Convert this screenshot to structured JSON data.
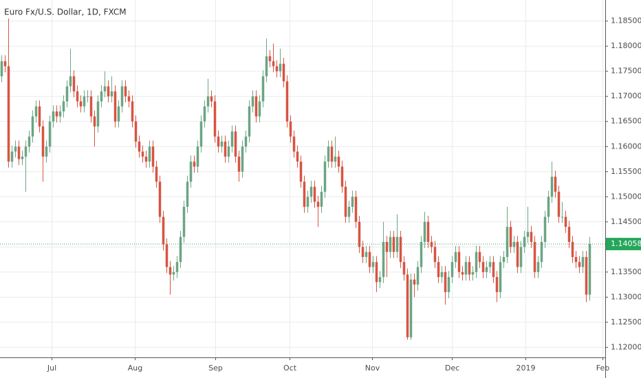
{
  "chart_data": {
    "type": "candlestick",
    "title": "Euro Fx/U.S. Dollar, 1D, FXCM",
    "open": [
      1.174,
      1.177,
      1.176,
      1.157,
      1.159,
      1.16,
      1.1575,
      1.158,
      1.16,
      1.162,
      1.166,
      1.168,
      1.164,
      1.158,
      1.16,
      1.165,
      1.167,
      1.166,
      1.167,
      1.169,
      1.172,
      1.174,
      1.171,
      1.169,
      1.168,
      1.17,
      1.17,
      1.166,
      1.164,
      1.169,
      1.171,
      1.172,
      1.17,
      1.171,
      1.165,
      1.168,
      1.172,
      1.17,
      1.169,
      1.165,
      1.161,
      1.159,
      1.158,
      1.157,
      1.16,
      1.156,
      1.153,
      1.146,
      1.1405,
      1.136,
      1.1345,
      1.135,
      1.137,
      1.142,
      1.148,
      1.153,
      1.157,
      1.156,
      1.16,
      1.165,
      1.168,
      1.17,
      1.169,
      1.162,
      1.16,
      1.161,
      1.158,
      1.16,
      1.163,
      1.158,
      1.155,
      1.16,
      1.162,
      1.168,
      1.17,
      1.166,
      1.169,
      1.174,
      1.178,
      1.177,
      1.176,
      1.175,
      1.1765,
      1.173,
      1.165,
      1.162,
      1.159,
      1.157,
      1.153,
      1.148,
      1.15,
      1.152,
      1.149,
      1.148,
      1.151,
      1.157,
      1.16,
      1.157,
      1.158,
      1.156,
      1.152,
      1.146,
      1.148,
      1.15,
      1.145,
      1.14,
      1.138,
      1.139,
      1.136,
      1.137,
      1.133,
      1.134,
      1.141,
      1.139,
      1.142,
      1.139,
      1.142,
      1.137,
      1.1345,
      1.122,
      1.1335,
      1.1325,
      1.136,
      1.141,
      1.145,
      1.141,
      1.14,
      1.137,
      1.134,
      1.135,
      1.131,
      1.134,
      1.137,
      1.139,
      1.135,
      1.1345,
      1.137,
      1.1345,
      1.135,
      1.139,
      1.137,
      1.135,
      1.136,
      1.137,
      1.134,
      1.131,
      1.137,
      1.138,
      1.144,
      1.14,
      1.141,
      1.136,
      1.14,
      1.142,
      1.143,
      1.141,
      1.135,
      1.137,
      1.141,
      1.146,
      1.15,
      1.154,
      1.151,
      1.146,
      1.146,
      1.144,
      1.141,
      1.138,
      1.137,
      1.136,
      1.138,
      1.1305
    ],
    "high": [
      1.1782,
      1.1782,
      1.1855,
      1.1602,
      1.1612,
      1.1612,
      1.1592,
      1.1612,
      1.1632,
      1.1672,
      1.1692,
      1.1692,
      1.1652,
      1.1612,
      1.1662,
      1.1682,
      1.1682,
      1.1682,
      1.1702,
      1.1732,
      1.1795,
      1.1752,
      1.1722,
      1.1702,
      1.1712,
      1.1712,
      1.1712,
      1.1672,
      1.1702,
      1.1722,
      1.175,
      1.1732,
      1.174,
      1.1722,
      1.1692,
      1.1732,
      1.1732,
      1.1712,
      1.1702,
      1.1662,
      1.1622,
      1.1602,
      1.1592,
      1.1612,
      1.1612,
      1.1572,
      1.1542,
      1.1472,
      1.1417,
      1.1372,
      1.1362,
      1.1382,
      1.1432,
      1.1492,
      1.1542,
      1.1582,
      1.1582,
      1.1612,
      1.1662,
      1.1692,
      1.1735,
      1.1712,
      1.1702,
      1.1632,
      1.1622,
      1.1622,
      1.1612,
      1.1642,
      1.1642,
      1.1592,
      1.1612,
      1.1632,
      1.1692,
      1.1712,
      1.1712,
      1.1702,
      1.1752,
      1.1815,
      1.1792,
      1.1805,
      1.1772,
      1.1795,
      1.1777,
      1.1742,
      1.1662,
      1.1632,
      1.1602,
      1.1582,
      1.1542,
      1.1512,
      1.1532,
      1.1532,
      1.1502,
      1.1522,
      1.1582,
      1.1612,
      1.1612,
      1.162,
      1.1592,
      1.1572,
      1.1532,
      1.1492,
      1.1512,
      1.1512,
      1.1462,
      1.1412,
      1.1402,
      1.1402,
      1.1382,
      1.1382,
      1.1352,
      1.145,
      1.1422,
      1.1432,
      1.1432,
      1.1465,
      1.1432,
      1.1382,
      1.1357,
      1.1347,
      1.1347,
      1.1372,
      1.1422,
      1.147,
      1.1462,
      1.1422,
      1.1412,
      1.1382,
      1.1362,
      1.1362,
      1.1352,
      1.1382,
      1.1402,
      1.1402,
      1.1362,
      1.1382,
      1.1382,
      1.1362,
      1.1402,
      1.1402,
      1.1382,
      1.1372,
      1.1382,
      1.1382,
      1.1352,
      1.1382,
      1.1392,
      1.148,
      1.1452,
      1.1422,
      1.1422,
      1.1412,
      1.1432,
      1.148,
      1.1442,
      1.1422,
      1.1382,
      1.1422,
      1.1472,
      1.1512,
      1.157,
      1.1552,
      1.1522,
      1.149,
      1.1472,
      1.1452,
      1.1422,
      1.1392,
      1.1382,
      1.1392,
      1.1392,
      1.142
    ],
    "low": [
      1.1728,
      1.1748,
      1.1558,
      1.1558,
      1.1578,
      1.1563,
      1.1563,
      1.151,
      1.1588,
      1.1608,
      1.1648,
      1.1628,
      1.153,
      1.1568,
      1.1588,
      1.1638,
      1.1648,
      1.1648,
      1.1658,
      1.1678,
      1.1708,
      1.1698,
      1.1678,
      1.1668,
      1.1668,
      1.1688,
      1.1648,
      1.16,
      1.1628,
      1.1678,
      1.1698,
      1.1688,
      1.1688,
      1.1638,
      1.1638,
      1.1668,
      1.1688,
      1.1678,
      1.1638,
      1.1598,
      1.1578,
      1.1568,
      1.1558,
      1.1558,
      1.1548,
      1.1518,
      1.1448,
      1.1393,
      1.1348,
      1.1305,
      1.1333,
      1.1338,
      1.1358,
      1.1408,
      1.1468,
      1.1518,
      1.1548,
      1.1548,
      1.1588,
      1.1638,
      1.1668,
      1.1678,
      1.1608,
      1.1588,
      1.1588,
      1.1568,
      1.1568,
      1.1588,
      1.1568,
      1.153,
      1.1538,
      1.1588,
      1.1608,
      1.1668,
      1.1648,
      1.1648,
      1.1678,
      1.1728,
      1.1758,
      1.1748,
      1.1738,
      1.1738,
      1.1718,
      1.1638,
      1.1608,
      1.1578,
      1.1558,
      1.1518,
      1.1468,
      1.1468,
      1.1488,
      1.1478,
      1.144,
      1.1468,
      1.1498,
      1.1558,
      1.1558,
      1.1558,
      1.1548,
      1.1508,
      1.1448,
      1.1448,
      1.1468,
      1.1438,
      1.1388,
      1.1368,
      1.1368,
      1.1348,
      1.1348,
      1.131,
      1.1318,
      1.1328,
      1.134,
      1.1378,
      1.1378,
      1.1378,
      1.1358,
      1.1333,
      1.1215,
      1.1215,
      1.13,
      1.1313,
      1.1348,
      1.1398,
      1.1398,
      1.1388,
      1.1358,
      1.1328,
      1.1328,
      1.1285,
      1.1298,
      1.1328,
      1.1358,
      1.1338,
      1.1333,
      1.1333,
      1.1333,
      1.1333,
      1.1338,
      1.1358,
      1.1338,
      1.1338,
      1.1348,
      1.1328,
      1.129,
      1.1298,
      1.1358,
      1.1368,
      1.1388,
      1.1388,
      1.1348,
      1.1348,
      1.1388,
      1.1408,
      1.1398,
      1.1338,
      1.1338,
      1.1358,
      1.1398,
      1.1448,
      1.1488,
      1.1498,
      1.1448,
      1.1448,
      1.1428,
      1.1398,
      1.1368,
      1.1358,
      1.1348,
      1.1348,
      1.129,
      1.1293
    ],
    "close": [
      1.177,
      1.176,
      1.157,
      1.159,
      1.16,
      1.1575,
      1.158,
      1.16,
      1.162,
      1.166,
      1.168,
      1.164,
      1.158,
      1.16,
      1.165,
      1.167,
      1.166,
      1.167,
      1.169,
      1.172,
      1.174,
      1.171,
      1.169,
      1.168,
      1.17,
      1.17,
      1.166,
      1.164,
      1.169,
      1.171,
      1.172,
      1.17,
      1.171,
      1.165,
      1.168,
      1.172,
      1.17,
      1.169,
      1.165,
      1.161,
      1.159,
      1.158,
      1.157,
      1.16,
      1.156,
      1.153,
      1.146,
      1.1405,
      1.136,
      1.1345,
      1.135,
      1.137,
      1.142,
      1.148,
      1.153,
      1.157,
      1.156,
      1.16,
      1.165,
      1.168,
      1.17,
      1.169,
      1.162,
      1.16,
      1.161,
      1.158,
      1.16,
      1.163,
      1.158,
      1.155,
      1.16,
      1.162,
      1.168,
      1.17,
      1.166,
      1.169,
      1.174,
      1.178,
      1.177,
      1.176,
      1.175,
      1.1765,
      1.173,
      1.165,
      1.162,
      1.159,
      1.157,
      1.153,
      1.148,
      1.15,
      1.152,
      1.149,
      1.148,
      1.151,
      1.157,
      1.16,
      1.157,
      1.158,
      1.156,
      1.152,
      1.146,
      1.148,
      1.15,
      1.145,
      1.14,
      1.138,
      1.139,
      1.136,
      1.137,
      1.133,
      1.134,
      1.141,
      1.139,
      1.142,
      1.139,
      1.142,
      1.137,
      1.1345,
      1.122,
      1.1335,
      1.1325,
      1.136,
      1.141,
      1.145,
      1.141,
      1.14,
      1.137,
      1.134,
      1.135,
      1.131,
      1.134,
      1.137,
      1.139,
      1.135,
      1.1345,
      1.137,
      1.1345,
      1.135,
      1.139,
      1.137,
      1.135,
      1.136,
      1.137,
      1.134,
      1.131,
      1.137,
      1.138,
      1.144,
      1.14,
      1.141,
      1.136,
      1.14,
      1.142,
      1.143,
      1.141,
      1.135,
      1.137,
      1.141,
      1.146,
      1.15,
      1.154,
      1.151,
      1.146,
      1.146,
      1.144,
      1.141,
      1.138,
      1.137,
      1.136,
      1.138,
      1.1305,
      1.14058
    ],
    "up_color": "#6ba583",
    "down_color": "#d75442",
    "xlim": [
      -0.5,
      175.5
    ],
    "xticks": [
      {
        "value": 14.6,
        "label": "Jul"
      },
      {
        "value": 38.8,
        "label": "Aug"
      },
      {
        "value": 62.2,
        "label": "Sep"
      },
      {
        "value": 83.8,
        "label": "Oct"
      },
      {
        "value": 107.8,
        "label": "Nov"
      },
      {
        "value": 131,
        "label": "Dec"
      },
      {
        "value": 152.4,
        "label": "2019"
      },
      {
        "value": 174.8,
        "label": "Feb"
      }
    ],
    "ylim": [
      1.118,
      1.1892
    ],
    "yticks": [
      {
        "value": 1.12,
        "label": "1.12000"
      },
      {
        "value": 1.125,
        "label": "1.12500"
      },
      {
        "value": 1.13,
        "label": "1.13000"
      },
      {
        "value": 1.135,
        "label": "1.13500"
      },
      {
        "value": 1.14,
        "label": "1.14000"
      },
      {
        "value": 1.145,
        "label": "1.14500"
      },
      {
        "value": 1.15,
        "label": "1.15000"
      },
      {
        "value": 1.155,
        "label": "1.15500"
      },
      {
        "value": 1.16,
        "label": "1.16000"
      },
      {
        "value": 1.165,
        "label": "1.16500"
      },
      {
        "value": 1.17,
        "label": "1.17000"
      },
      {
        "value": 1.175,
        "label": "1.17500"
      },
      {
        "value": 1.18,
        "label": "1.18000"
      },
      {
        "value": 1.185,
        "label": "1.18500"
      }
    ],
    "last_price": 1.14058,
    "last_price_color": "#26a65b",
    "grid": true
  }
}
